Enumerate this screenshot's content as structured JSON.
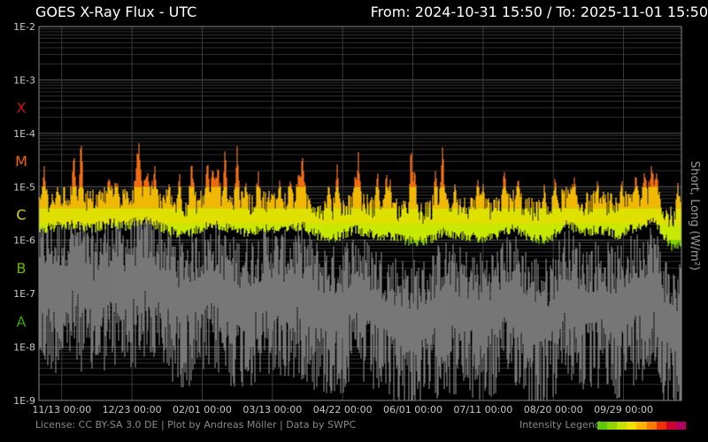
{
  "header": {
    "title": "GOES X-Ray Flux - UTC",
    "range": "From: 2024-10-31 15:50  /  To: 2025-11-01 15:50"
  },
  "footer": {
    "license": "License: CC BY-SA 3.0 DE | Plot by Andreas Möller | Data by SWPC",
    "legend_label": "Intensity Legend",
    "legend_colors": [
      "#5ec800",
      "#8fd400",
      "#c8e000",
      "#f0e000",
      "#ffb400",
      "#ff7a00",
      "#f03000",
      "#d00030",
      "#b00060"
    ]
  },
  "chart_data": {
    "type": "line",
    "title": "GOES X-Ray Flux - UTC",
    "ylabel": "Short, Long (W/m²)",
    "y_scale": "log",
    "ylim": [
      1e-09,
      0.01
    ],
    "y_ticks": [
      "1E-2",
      "1E-3",
      "1E-4",
      "1E-5",
      "1E-6",
      "1E-7",
      "1E-8",
      "1E-9"
    ],
    "flare_classes": [
      {
        "label": "X",
        "color": "#cc1111",
        "level": 0.000316
      },
      {
        "label": "M",
        "color": "#ee6a00",
        "level": 3.16e-05
      },
      {
        "label": "C",
        "color": "#dddd00",
        "level": 3.16e-06
      },
      {
        "label": "B",
        "color": "#66bb00",
        "level": 3.16e-07
      },
      {
        "label": "A",
        "color": "#33aa00",
        "level": 3.16e-08
      }
    ],
    "x_ticks": [
      {
        "day": 13,
        "label": "11/13 00:00"
      },
      {
        "day": 53,
        "label": "12/23 00:00"
      },
      {
        "day": 93,
        "label": "02/01 00:00"
      },
      {
        "day": 133,
        "label": "03/13 00:00"
      },
      {
        "day": 173,
        "label": "04/22 00:00"
      },
      {
        "day": 213,
        "label": "06/01 00:00"
      },
      {
        "day": 253,
        "label": "07/11 00:00"
      },
      {
        "day": 293,
        "label": "08/20 00:00"
      },
      {
        "day": 333,
        "label": "09/29 00:00"
      }
    ],
    "x_range_days": [
      0,
      366
    ],
    "grid": true,
    "series": [
      {
        "name": "Long",
        "color_scale": "intensity",
        "baseline": [
          [
            0,
            2.2e-06
          ],
          [
            10,
            2.5e-06
          ],
          [
            20,
            2.7e-06
          ],
          [
            30,
            2.3e-06
          ],
          [
            40,
            3e-06
          ],
          [
            50,
            2.6e-06
          ],
          [
            60,
            3.5e-06
          ],
          [
            70,
            2.4e-06
          ],
          [
            80,
            1.8e-06
          ],
          [
            90,
            2.2e-06
          ],
          [
            100,
            2.8e-06
          ],
          [
            110,
            2.2e-06
          ],
          [
            120,
            2e-06
          ],
          [
            130,
            2.4e-06
          ],
          [
            140,
            2.1e-06
          ],
          [
            150,
            2.6e-06
          ],
          [
            160,
            1.7e-06
          ],
          [
            170,
            1.6e-06
          ],
          [
            180,
            2.3e-06
          ],
          [
            190,
            1.8e-06
          ],
          [
            200,
            1.6e-06
          ],
          [
            210,
            1.4e-06
          ],
          [
            220,
            1.3e-06
          ],
          [
            230,
            2e-06
          ],
          [
            240,
            1.8e-06
          ],
          [
            250,
            1.5e-06
          ],
          [
            260,
            1.6e-06
          ],
          [
            270,
            2.4e-06
          ],
          [
            280,
            1.6e-06
          ],
          [
            290,
            1.4e-06
          ],
          [
            300,
            2.8e-06
          ],
          [
            310,
            2e-06
          ],
          [
            320,
            2.2e-06
          ],
          [
            330,
            1.8e-06
          ],
          [
            340,
            2.5e-06
          ],
          [
            350,
            3e-06
          ],
          [
            360,
            1.1e-06
          ],
          [
            366,
            1.3e-06
          ]
        ],
        "peaks": [
          [
            3,
            2.5e-05
          ],
          [
            20,
            4.5e-05
          ],
          [
            24,
            9e-05
          ],
          [
            40,
            1.5e-05
          ],
          [
            44,
            1.3e-05
          ],
          [
            56,
            3.5e-05
          ],
          [
            57,
            6.8e-05
          ],
          [
            62,
            1.8e-05
          ],
          [
            66,
            2.5e-05
          ],
          [
            74,
            1.2e-05
          ],
          [
            80,
            2e-05
          ],
          [
            87,
            3.5e-05
          ],
          [
            96,
            3.5e-05
          ],
          [
            99,
            2.4e-05
          ],
          [
            100,
            1.5e-05
          ],
          [
            102,
            2.6e-05
          ],
          [
            106,
            5.5e-05
          ],
          [
            113,
            6.5e-05
          ],
          [
            118,
            1.2e-05
          ],
          [
            125,
            2e-05
          ],
          [
            137,
            1.4e-05
          ],
          [
            143,
            1.5e-05
          ],
          [
            148,
            2e-05
          ],
          [
            150,
            4.5e-05
          ],
          [
            165,
            1.2e-05
          ],
          [
            170,
            3e-05
          ],
          [
            180,
            1.5e-05
          ],
          [
            182,
            4.5e-05
          ],
          [
            193,
            2e-05
          ],
          [
            198,
            2e-05
          ],
          [
            200,
            1.5e-05
          ],
          [
            212,
            7e-05
          ],
          [
            214,
            2.5e-05
          ],
          [
            226,
            2.5e-05
          ],
          [
            230,
            7e-05
          ],
          [
            237,
            1.2e-05
          ],
          [
            250,
            1.4e-05
          ],
          [
            253,
            1.2e-05
          ],
          [
            265,
            2.5e-05
          ],
          [
            273,
            1.5e-05
          ],
          [
            288,
            1.2e-05
          ],
          [
            294,
            1.5e-05
          ],
          [
            305,
            1.5e-05
          ],
          [
            318,
            1.3e-05
          ],
          [
            332,
            1.5e-05
          ],
          [
            340,
            1.8e-05
          ],
          [
            345,
            2.2e-05
          ],
          [
            349,
            3e-05
          ],
          [
            352,
            2e-05
          ],
          [
            364,
            1.2e-05
          ]
        ]
      },
      {
        "name": "Short",
        "color": "#777777",
        "baseline": [
          [
            0,
            1.5e-07
          ],
          [
            10,
            1.5e-07
          ],
          [
            20,
            2.5e-07
          ],
          [
            30,
            1e-07
          ],
          [
            40,
            2e-07
          ],
          [
            50,
            1.5e-07
          ],
          [
            60,
            2.5e-07
          ],
          [
            70,
            1.5e-07
          ],
          [
            80,
            8e-08
          ],
          [
            90,
            1e-07
          ],
          [
            100,
            1.5e-07
          ],
          [
            110,
            8e-08
          ],
          [
            120,
            8e-08
          ],
          [
            130,
            1.2e-07
          ],
          [
            140,
            1e-07
          ],
          [
            150,
            1.2e-07
          ],
          [
            160,
            6e-08
          ],
          [
            170,
            5e-08
          ],
          [
            180,
            1e-07
          ],
          [
            190,
            6e-08
          ],
          [
            200,
            4e-08
          ],
          [
            210,
            3e-08
          ],
          [
            220,
            3e-08
          ],
          [
            230,
            7e-08
          ],
          [
            240,
            5e-08
          ],
          [
            250,
            4e-08
          ],
          [
            260,
            5e-08
          ],
          [
            270,
            1e-07
          ],
          [
            280,
            4e-08
          ],
          [
            290,
            3e-08
          ],
          [
            300,
            1.2e-07
          ],
          [
            310,
            6e-08
          ],
          [
            320,
            7e-08
          ],
          [
            330,
            5e-08
          ],
          [
            340,
            1e-07
          ],
          [
            350,
            1.5e-07
          ],
          [
            360,
            2e-08
          ],
          [
            366,
            3e-08
          ]
        ]
      }
    ]
  }
}
